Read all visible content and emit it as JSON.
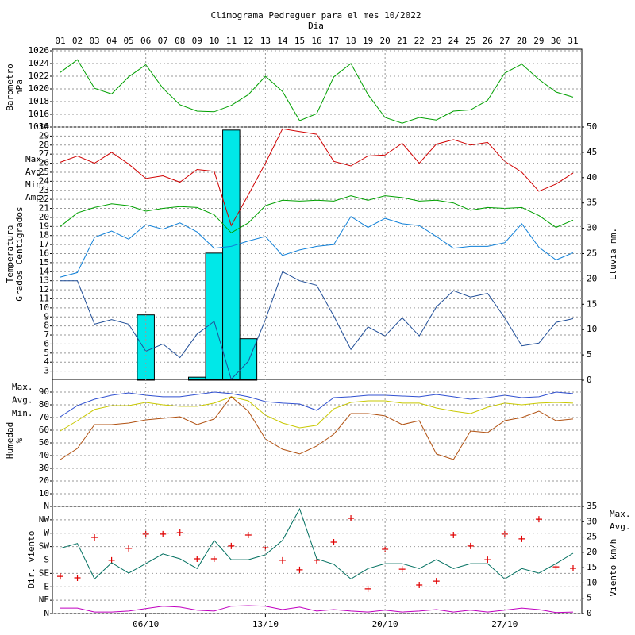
{
  "chart_data": [
    {
      "type": "line",
      "title": "Climograma Pedreguer para el mes 10/2022",
      "xlabel": "Dia",
      "categories": [
        "01",
        "02",
        "03",
        "04",
        "05",
        "06",
        "07",
        "08",
        "09",
        "10",
        "11",
        "12",
        "13",
        "14",
        "15",
        "16",
        "17",
        "18",
        "19",
        "20",
        "21",
        "22",
        "23",
        "24",
        "25",
        "26",
        "27",
        "28",
        "29",
        "30",
        "31"
      ],
      "ylabel": [
        "Barometro",
        "hPa"
      ],
      "ylim": [
        1014,
        1026
      ],
      "yticks": [
        1014,
        1016,
        1018,
        1020,
        1022,
        1024,
        1026
      ],
      "grid": true,
      "series": [
        {
          "name": "Barometro",
          "color": "#00a000",
          "values": [
            1022.6,
            1024.6,
            1020.1,
            1019.2,
            1021.9,
            1023.8,
            1020.1,
            1017.5,
            1016.5,
            1016.4,
            1017.4,
            1019.1,
            1022,
            1019.6,
            1015,
            1016.1,
            1021.9,
            1024,
            1019.1,
            1015.5,
            1014.6,
            1015.5,
            1015.1,
            1016.5,
            1016.7,
            1018.2,
            1022.5,
            1023.9,
            1021.5,
            1019.5,
            1018.7
          ]
        }
      ]
    },
    {
      "type": "line",
      "ylabel": [
        "Temperatura",
        "Grados Centigrados"
      ],
      "y2label": "Lluvia mm.",
      "ylim": [
        2,
        30
      ],
      "yticks": [
        3,
        4,
        5,
        6,
        7,
        8,
        9,
        10,
        11,
        12,
        13,
        14,
        15,
        16,
        17,
        18,
        19,
        20,
        21,
        22,
        23,
        24,
        25,
        26,
        27,
        28,
        29,
        30
      ],
      "y2lim": [
        0,
        50
      ],
      "y2ticks": [
        0,
        5,
        10,
        15,
        20,
        25,
        30,
        35,
        40,
        45,
        50
      ],
      "grid": true,
      "series": [
        {
          "type": "bar",
          "axis": "y2",
          "color": "#00e8e8",
          "values": [
            0,
            0,
            0,
            0,
            0,
            12.9,
            0,
            0,
            0.6,
            25.1,
            49.4,
            8.2,
            0,
            0,
            0,
            0,
            0,
            0,
            0,
            0,
            0,
            0,
            0,
            0,
            0,
            0,
            0,
            0,
            0,
            0,
            0
          ]
        },
        {
          "name": "Max.",
          "color": "#d00000",
          "values": [
            26.1,
            26.8,
            26,
            27.2,
            25.9,
            24.3,
            24.6,
            23.9,
            25.3,
            25.1,
            19.1,
            22.5,
            26,
            29.8,
            29.5,
            29.2,
            26.2,
            25.7,
            26.8,
            26.9,
            28.2,
            26,
            28.1,
            28.6,
            28,
            28.3,
            26.2,
            25,
            22.9,
            23.7,
            24.9
          ]
        },
        {
          "name": "Avg.",
          "color": "#00a000",
          "values": [
            19,
            20.5,
            21.1,
            21.5,
            21.3,
            20.7,
            21,
            21.2,
            21.1,
            20.3,
            18.3,
            19.4,
            21.3,
            21.9,
            21.8,
            21.9,
            21.8,
            22.4,
            21.9,
            22.4,
            22.2,
            21.8,
            21.9,
            21.6,
            20.8,
            21.1,
            21,
            21.1,
            20.2,
            18.9,
            19.7
          ]
        },
        {
          "name": "Min.",
          "color": "#1080d8",
          "values": [
            13.4,
            13.9,
            17.8,
            18.5,
            17.6,
            19.2,
            18.7,
            19.4,
            18.4,
            16.6,
            16.8,
            17.4,
            17.9,
            15.8,
            16.4,
            16.8,
            17,
            20.1,
            18.9,
            19.9,
            19.3,
            19.1,
            17.9,
            16.6,
            16.8,
            16.8,
            17.2,
            19.3,
            16.7,
            15.3,
            16.1
          ]
        },
        {
          "name": "Amp.",
          "color": "#204e98",
          "values": [
            13,
            13,
            8.2,
            8.7,
            8.2,
            5.2,
            6,
            4.5,
            7.1,
            8.5,
            2.1,
            4.1,
            8.7,
            14,
            13,
            12.5,
            9.1,
            5.4,
            7.9,
            6.9,
            8.9,
            6.9,
            10.1,
            11.9,
            11.2,
            11.6,
            8.9,
            5.8,
            6.1,
            8.4,
            8.8
          ]
        }
      ]
    },
    {
      "type": "line",
      "ylabel": [
        "Humedad",
        "%"
      ],
      "ylim": [
        0,
        100
      ],
      "yticks": [
        10,
        20,
        30,
        40,
        50,
        60,
        70,
        80,
        90
      ],
      "grid": true,
      "series": [
        {
          "name": "Max.",
          "color": "#3050d0",
          "values": [
            70.6,
            79.4,
            84.4,
            87.5,
            89.4,
            87.5,
            86.3,
            86.3,
            88.1,
            90,
            88.8,
            86.3,
            82.5,
            81.3,
            80.6,
            75.6,
            85.6,
            86.3,
            87.5,
            87.5,
            86.9,
            86.3,
            88.1,
            86.3,
            84.4,
            85.6,
            87.5,
            85.6,
            86.3,
            90,
            88.8
          ]
        },
        {
          "name": "Avg.",
          "color": "#c8c800",
          "values": [
            59.4,
            67.5,
            76.3,
            79.4,
            79.4,
            81.9,
            80,
            78.8,
            78.8,
            81.3,
            86.3,
            83.1,
            71.9,
            65.6,
            61.9,
            63.8,
            76.9,
            81.9,
            83.1,
            83.1,
            81.3,
            81.3,
            77.5,
            75,
            73.1,
            78.1,
            81.3,
            80,
            81.3,
            81.9,
            81.3
          ]
        },
        {
          "name": "Min.",
          "color": "#b05010",
          "values": [
            36.9,
            45.6,
            64.4,
            64.4,
            65.6,
            68.1,
            69.4,
            70.6,
            64.4,
            68.8,
            86.3,
            75,
            53.1,
            45,
            41.3,
            47.5,
            56.9,
            73.1,
            73.1,
            71.3,
            64.4,
            67.5,
            41.3,
            36.9,
            59.4,
            58.1,
            67.5,
            70,
            75,
            67.5,
            68.8
          ]
        }
      ]
    },
    {
      "type": "line",
      "ylabel": [
        "Dir. viento"
      ],
      "y2label": "Viento km/h",
      "ylim": [
        0,
        360
      ],
      "yticks": [
        {
          "value": 0,
          "label": "N"
        },
        {
          "value": 45,
          "label": "NE"
        },
        {
          "value": 90,
          "label": "E"
        },
        {
          "value": 135,
          "label": "SE"
        },
        {
          "value": 180,
          "label": "S"
        },
        {
          "value": 225,
          "label": "SW"
        },
        {
          "value": 270,
          "label": "W"
        },
        {
          "value": 315,
          "label": "NW"
        },
        {
          "value": 360,
          "label": "N"
        }
      ],
      "y2lim": [
        0,
        35
      ],
      "y2ticks": [
        0,
        5,
        10,
        15,
        20,
        25,
        30,
        35
      ],
      "grid": true,
      "xticks": [
        {
          "value": 6,
          "label": "06/10"
        },
        {
          "value": 13,
          "label": "13/10"
        },
        {
          "value": 20,
          "label": "20/10"
        },
        {
          "value": 27,
          "label": "27/10"
        }
      ],
      "series": [
        {
          "type": "scatter",
          "color": "#e00000",
          "values": [
            125,
            120,
            256,
            179,
            219,
            267,
            267,
            272,
            184,
            184,
            227,
            264,
            221,
            179,
            147,
            179,
            240,
            320,
            83,
            216,
            149,
            96,
            109,
            264,
            227,
            181,
            267,
            251,
            317,
            157,
            152
          ]
        },
        {
          "name": "Max.",
          "axis": "y2",
          "color": "#006f5f",
          "values": [
            21.3,
            22.9,
            11.3,
            16.6,
            13.2,
            16.3,
            19.5,
            17.9,
            14.7,
            23.9,
            17.6,
            17.6,
            19.2,
            23.9,
            34.2,
            17.9,
            16.1,
            11.3,
            14.7,
            16.3,
            16.3,
            14.7,
            17.6,
            14.7,
            16.3,
            16.3,
            11.3,
            14.7,
            13.2,
            16.3,
            19.7
          ]
        },
        {
          "name": "Avg.",
          "axis": "y2",
          "color": "#c000c0",
          "values": [
            1.8,
            1.8,
            0.5,
            0.5,
            0.8,
            1.6,
            2.4,
            2.1,
            1.1,
            0.8,
            2.4,
            2.6,
            2.4,
            1.3,
            2.1,
            0.8,
            1.3,
            0.8,
            0.5,
            1.1,
            0.5,
            0.8,
            1.3,
            0.5,
            1.1,
            0.5,
            1.1,
            1.8,
            1.3,
            0.3,
            0.5
          ]
        }
      ]
    }
  ]
}
